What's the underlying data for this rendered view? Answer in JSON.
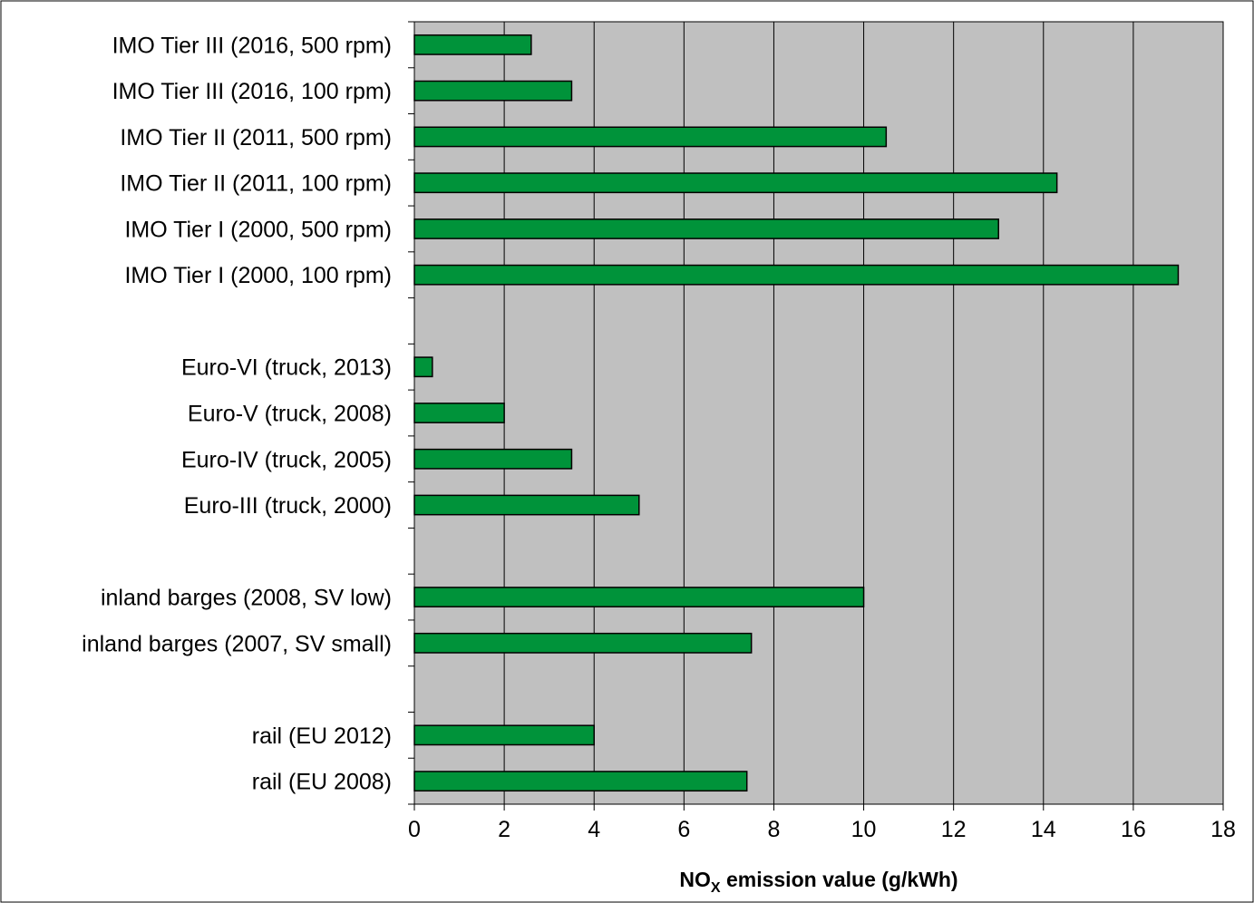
{
  "chart_data": {
    "type": "bar",
    "orientation": "horizontal",
    "categories": [
      "IMO Tier III (2016, 500 rpm)",
      "IMO Tier III (2016, 100 rpm)",
      "IMO Tier II (2011, 500 rpm)",
      "IMO Tier II (2011, 100 rpm)",
      "IMO Tier I (2000, 500 rpm)",
      "IMO Tier I (2000, 100 rpm)",
      "",
      "Euro-VI (truck, 2013)",
      "Euro-V (truck, 2008)",
      "Euro-IV (truck, 2005)",
      "Euro-III (truck, 2000)",
      "",
      "inland barges (2008, SV low)",
      "inland barges (2007, SV small)",
      "",
      "rail (EU 2012)",
      "rail (EU 2008)"
    ],
    "values": [
      2.6,
      3.5,
      10.5,
      14.3,
      13.0,
      17.0,
      null,
      0.4,
      2.0,
      3.5,
      5.0,
      null,
      10.0,
      7.5,
      null,
      4.0,
      7.4
    ],
    "xlabel": {
      "main": "NO",
      "subscript": "X",
      "rest": " emission value (g/kWh)"
    },
    "xlim": [
      0,
      18
    ],
    "xticks": [
      0,
      2,
      4,
      6,
      8,
      10,
      12,
      14,
      16,
      18
    ],
    "grid": "vertical",
    "legend": "none",
    "colors": {
      "bar": "#00933a",
      "plot_background": "#c0c0c0",
      "grid": "#000000"
    }
  }
}
